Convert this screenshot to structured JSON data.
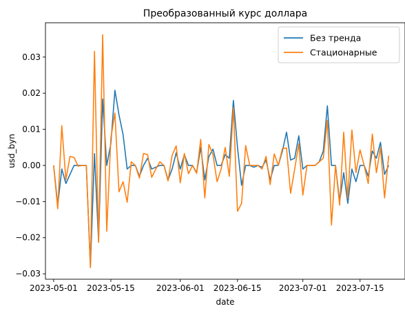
{
  "chart_data": {
    "type": "line",
    "title": "Преобразованный курс доллара",
    "xlabel": "date",
    "ylabel": "usd_byn",
    "legend_position": "top-right",
    "grid": false,
    "x_tick_labels": [
      "2023-05-01",
      "2023-05-15",
      "2023-06-01",
      "2023-06-15",
      "2023-07-01",
      "2023-07-15"
    ],
    "y_ticks": [
      -0.03,
      -0.02,
      -0.01,
      0.0,
      0.01,
      0.02,
      0.03
    ],
    "y_tick_labels": [
      "−0.03",
      "−0.02",
      "−0.01",
      "0.00",
      "0.01",
      "0.02",
      "0.03"
    ],
    "xlim": [
      "2023-04-29",
      "2023-07-26"
    ],
    "ylim": [
      -0.0315,
      0.0395
    ],
    "x": [
      "2023-05-01",
      "2023-05-02",
      "2023-05-03",
      "2023-05-04",
      "2023-05-05",
      "2023-05-06",
      "2023-05-07",
      "2023-05-08",
      "2023-05-09",
      "2023-05-10",
      "2023-05-11",
      "2023-05-12",
      "2023-05-13",
      "2023-05-14",
      "2023-05-15",
      "2023-05-16",
      "2023-05-17",
      "2023-05-18",
      "2023-05-19",
      "2023-05-20",
      "2023-05-21",
      "2023-05-22",
      "2023-05-23",
      "2023-05-24",
      "2023-05-25",
      "2023-05-26",
      "2023-05-27",
      "2023-05-28",
      "2023-05-29",
      "2023-05-30",
      "2023-05-31",
      "2023-06-01",
      "2023-06-02",
      "2023-06-03",
      "2023-06-04",
      "2023-06-05",
      "2023-06-06",
      "2023-06-07",
      "2023-06-08",
      "2023-06-09",
      "2023-06-10",
      "2023-06-11",
      "2023-06-12",
      "2023-06-13",
      "2023-06-14",
      "2023-06-15",
      "2023-06-16",
      "2023-06-17",
      "2023-06-18",
      "2023-06-19",
      "2023-06-20",
      "2023-06-21",
      "2023-06-22",
      "2023-06-23",
      "2023-06-24",
      "2023-06-25",
      "2023-06-26",
      "2023-06-27",
      "2023-06-28",
      "2023-06-29",
      "2023-06-30",
      "2023-07-01",
      "2023-07-02",
      "2023-07-03",
      "2023-07-04",
      "2023-07-05",
      "2023-07-06",
      "2023-07-07",
      "2023-07-08",
      "2023-07-09",
      "2023-07-10",
      "2023-07-11",
      "2023-07-12",
      "2023-07-13",
      "2023-07-14",
      "2023-07-15",
      "2023-07-16",
      "2023-07-17",
      "2023-07-18",
      "2023-07-19",
      "2023-07-20",
      "2023-07-21",
      "2023-07-22"
    ],
    "series": [
      {
        "name": "Без тренда",
        "color": "#1f77b4",
        "values": [
          0.0,
          -0.011,
          -0.001,
          -0.005,
          -0.0025,
          0.0,
          0.0,
          0.0,
          0.0,
          -0.028,
          0.0033,
          -0.021,
          0.0184,
          0.0,
          0.006,
          0.0208,
          0.014,
          0.0085,
          -0.001,
          0.0,
          0.0,
          -0.003,
          0.0,
          0.002,
          -0.001,
          -0.0005,
          0.0,
          0.0,
          -0.004,
          -0.001,
          0.0035,
          -0.001,
          0.003,
          0.0,
          0.0,
          -0.002,
          0.005,
          -0.004,
          0.0025,
          0.0045,
          0.0,
          0.0,
          0.003,
          0.002,
          0.018,
          0.005,
          -0.0055,
          0.0,
          0.0,
          -0.0005,
          0.0,
          -0.0005,
          0.0015,
          -0.004,
          0.0,
          0.0,
          0.004,
          0.0092,
          0.0015,
          0.002,
          0.0082,
          -0.001,
          0.0,
          0.0,
          0.0,
          0.001,
          0.004,
          0.0165,
          0.0,
          0.0,
          -0.01,
          -0.002,
          -0.0105,
          -0.001,
          -0.0045,
          0.0,
          0.0,
          -0.003,
          0.004,
          0.002,
          0.0064,
          -0.0025,
          0.0
        ]
      },
      {
        "name": "Стационарные",
        "color": "#ff7f0e",
        "values": [
          0.0,
          -0.012,
          0.011,
          -0.004,
          0.0025,
          0.0022,
          -0.0002,
          0.0,
          0.0,
          -0.0283,
          0.0316,
          -0.0213,
          0.0362,
          -0.0182,
          0.0075,
          0.0145,
          -0.0073,
          -0.0045,
          -0.0102,
          0.001,
          0.0,
          -0.0035,
          0.0033,
          0.003,
          -0.0033,
          -0.001,
          0.001,
          0.0,
          -0.0043,
          0.0028,
          0.0054,
          -0.0048,
          0.0033,
          -0.0023,
          0.0,
          -0.0022,
          0.0072,
          -0.009,
          0.0058,
          0.003,
          -0.0045,
          -0.001,
          0.005,
          -0.003,
          0.016,
          -0.0127,
          -0.0105,
          0.0055,
          0.0,
          0.0,
          0.0,
          -0.001,
          0.0025,
          -0.0053,
          0.0032,
          0.0,
          0.0047,
          0.0048,
          -0.0077,
          -0.001,
          0.006,
          -0.0082,
          0.0,
          0.0,
          0.0,
          0.001,
          0.002,
          0.0125,
          -0.0165,
          0.0,
          -0.011,
          0.0092,
          -0.009,
          0.0098,
          -0.002,
          0.0043,
          0.0,
          -0.005,
          0.0087,
          -0.002,
          0.005,
          -0.009,
          0.0027
        ]
      }
    ]
  }
}
